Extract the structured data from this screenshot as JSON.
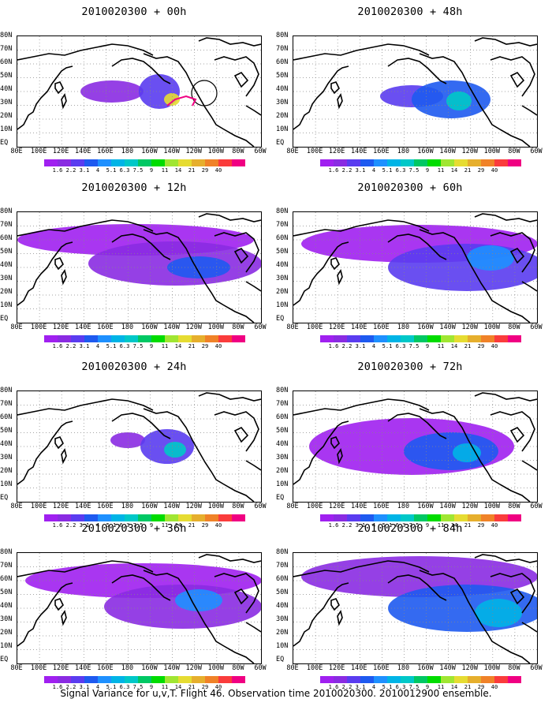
{
  "panels": [
    {
      "title": "2010020300 + 00h",
      "level": 0
    },
    {
      "title": "2010020300 + 48h",
      "level": 4
    },
    {
      "title": "2010020300 + 12h",
      "level": 1
    },
    {
      "title": "2010020300 + 60h",
      "level": 5
    },
    {
      "title": "2010020300 + 24h",
      "level": 2
    },
    {
      "title": "2010020300 + 72h",
      "level": 6
    },
    {
      "title": "2010020300 + 36h",
      "level": 3
    },
    {
      "title": "2010020300 + 84h",
      "level": 7
    }
  ],
  "lat_labels": [
    "80N",
    "70N",
    "60N",
    "50N",
    "40N",
    "30N",
    "20N",
    "10N",
    "EQ"
  ],
  "lon_labels": [
    "80E",
    "100E",
    "120E",
    "140E",
    "160E",
    "180",
    "160W",
    "140W",
    "120W",
    "100W",
    "80W",
    "60W"
  ],
  "colorbar": {
    "labels": [
      "1.6",
      "2.2",
      "3.1",
      "4",
      "5.1",
      "6.3",
      "7.5",
      "9",
      "11",
      "14",
      "21",
      "29",
      "40"
    ],
    "colors": [
      "#a020f0",
      "#8a2be2",
      "#5a3cf0",
      "#1e5af0",
      "#1e90ff",
      "#00b4e6",
      "#00c8c8",
      "#00c864",
      "#00dc00",
      "#a0e632",
      "#e6dc32",
      "#e6af2d",
      "#f08228",
      "#fa3c3c",
      "#f00082"
    ]
  },
  "caption": "Signal Variance for u,v,T. Flight 46. Observation time 2010020300. 2010012900 ensemble."
}
